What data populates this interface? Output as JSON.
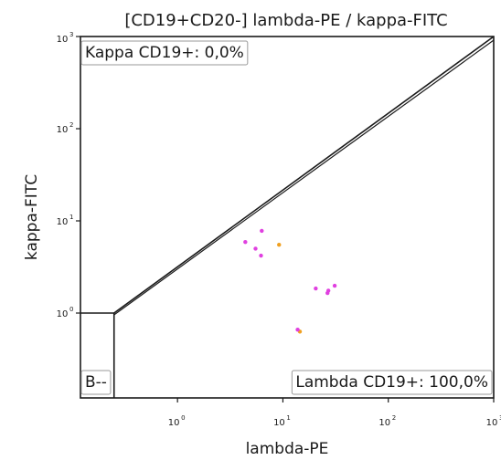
{
  "chart_data": {
    "type": "scatter",
    "title": "[CD19+CD20-] lambda-PE / kappa-FITC",
    "xlabel": "lambda-PE",
    "ylabel": "kappa-FITC",
    "x_scale": "log",
    "y_scale": "log",
    "xlim": [
      0.12,
      1000
    ],
    "ylim": [
      0.12,
      1000
    ],
    "x_ticks": [
      {
        "base": "10",
        "exp": "0",
        "value": 1
      },
      {
        "base": "10",
        "exp": "1",
        "value": 10
      },
      {
        "base": "10",
        "exp": "2",
        "value": 100
      },
      {
        "base": "10",
        "exp": "3",
        "value": 1000
      }
    ],
    "y_ticks": [
      {
        "base": "10",
        "exp": "0",
        "value": 1
      },
      {
        "base": "10",
        "exp": "1",
        "value": 10
      },
      {
        "base": "10",
        "exp": "2",
        "value": 100
      },
      {
        "base": "10",
        "exp": "3",
        "value": 1000
      }
    ],
    "grid": false,
    "gates": {
      "kappa": "Kappa CD19+: 0,0%",
      "lambda": "Lambda CD19+: 100,0%",
      "b_neg": "B--"
    },
    "points": [
      {
        "x": 4.4,
        "y": 5.9,
        "color": "#e040e0"
      },
      {
        "x": 5.5,
        "y": 5.0,
        "color": "#e040e0"
      },
      {
        "x": 6.3,
        "y": 7.8,
        "color": "#e040e0"
      },
      {
        "x": 6.2,
        "y": 4.2,
        "color": "#e040e0"
      },
      {
        "x": 9.2,
        "y": 5.5,
        "color": "#f0a020"
      },
      {
        "x": 20.5,
        "y": 1.85,
        "color": "#e040e0"
      },
      {
        "x": 26.5,
        "y": 1.65,
        "color": "#e040e0"
      },
      {
        "x": 27.0,
        "y": 1.75,
        "color": "#e040e0"
      },
      {
        "x": 31.0,
        "y": 1.98,
        "color": "#e040e0"
      },
      {
        "x": 14.5,
        "y": 0.63,
        "color": "#f0a020"
      },
      {
        "x": 13.8,
        "y": 0.66,
        "color": "#e040e0"
      }
    ],
    "gate_lines": {
      "diagonal_start": {
        "x": 0.25,
        "y": 1.0
      },
      "diagonal_end": {
        "x": 1000,
        "y": 1000
      },
      "b_box_corner": {
        "x": 0.25,
        "y": 1.0
      }
    }
  }
}
